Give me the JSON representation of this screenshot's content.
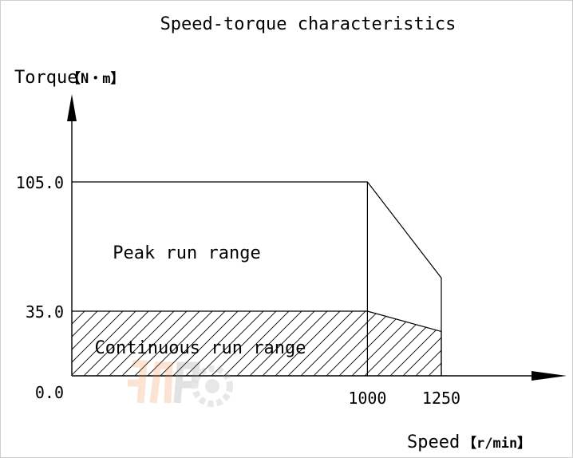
{
  "chart_data": {
    "type": "area",
    "title": "Speed-torque characteristics",
    "ylabel": "Torque",
    "ylabel_unit": "【N・m】",
    "xlabel": "Speed",
    "xlabel_unit": "【r/min】",
    "xlim": [
      0,
      1250
    ],
    "ylim": [
      0,
      105
    ],
    "y_ticks": [
      "105.0",
      "35.0",
      "0.0"
    ],
    "y_tick_values": [
      105,
      35,
      0
    ],
    "x_ticks": [
      "1000",
      "1250"
    ],
    "x_tick_values": [
      1000,
      1250
    ],
    "grid": false,
    "series": [
      {
        "name": "Peak run range",
        "x": [
          0,
          1000,
          1250,
          1250
        ],
        "y": [
          105,
          105,
          53,
          0
        ]
      },
      {
        "name": "Continuous run range",
        "x": [
          0,
          1000,
          1250,
          1250
        ],
        "y": [
          35,
          35,
          24,
          0
        ],
        "hatched": true
      }
    ],
    "watermark_text": "JMPC"
  }
}
